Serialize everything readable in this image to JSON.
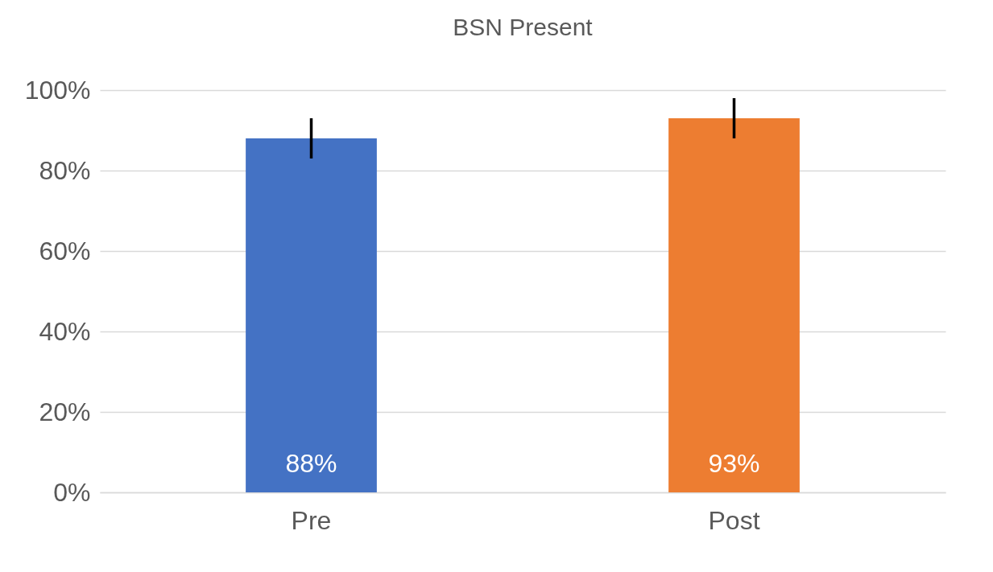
{
  "chart_data": {
    "type": "bar",
    "title": "BSN Present",
    "categories": [
      "Pre",
      "Post"
    ],
    "values": [
      88,
      93
    ],
    "colors": [
      "#4472c4",
      "#ed7d31"
    ],
    "errors": [
      5,
      5
    ],
    "value_labels": [
      "88%",
      "93%"
    ],
    "ylim": [
      0,
      100
    ],
    "yticks": [
      {
        "value": 0,
        "label": "0%"
      },
      {
        "value": 20,
        "label": "20%"
      },
      {
        "value": 40,
        "label": "40%"
      },
      {
        "value": 60,
        "label": "60%"
      },
      {
        "value": 80,
        "label": "80%"
      },
      {
        "value": 100,
        "label": "100%"
      }
    ],
    "grid": "y"
  }
}
